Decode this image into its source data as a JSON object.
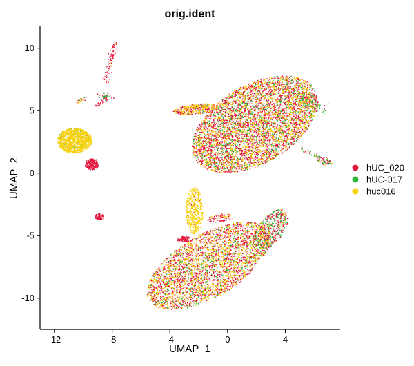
{
  "chart_data": {
    "type": "scatter",
    "title": "orig.ident",
    "xlabel": "UMAP_1",
    "ylabel": "UMAP_2",
    "xlim": [
      -13,
      7.8
    ],
    "ylim": [
      -12.5,
      11.8
    ],
    "x_ticks": [
      -12,
      -8,
      -4,
      0,
      4
    ],
    "y_ticks": [
      -10,
      -5,
      0,
      5,
      10
    ],
    "grid": false,
    "legend_position": "right",
    "series": [
      {
        "name": "hUC_020",
        "color": "#E3173F"
      },
      {
        "name": "hUC-017",
        "color": "#2FB53C"
      },
      {
        "name": "huc016",
        "color": "#F6D10C"
      }
    ],
    "clusters": [
      {
        "shape": "ellipse",
        "cx": 1.9,
        "cy": 3.9,
        "rx": 5.0,
        "ry": 3.0,
        "angle": 38,
        "n": 5200,
        "mix": [
          0.55,
          0.15,
          0.3
        ]
      },
      {
        "shape": "ellipse",
        "cx": -1.3,
        "cy": -7.4,
        "rx": 5.0,
        "ry": 2.4,
        "angle": 36,
        "n": 3400,
        "mix": [
          0.55,
          0.12,
          0.33
        ]
      },
      {
        "shape": "ellipse",
        "cx": 3.0,
        "cy": -4.5,
        "rx": 1.8,
        "ry": 0.9,
        "angle": 60,
        "n": 500,
        "mix": [
          0.5,
          0.4,
          0.1
        ]
      },
      {
        "shape": "ellipse",
        "cx": -2.3,
        "cy": -3.0,
        "rx": 0.6,
        "ry": 1.9,
        "angle": 0,
        "n": 450,
        "mix": [
          0.05,
          0.0,
          0.95
        ]
      },
      {
        "shape": "ellipse",
        "cx": -3.0,
        "cy": -5.3,
        "rx": 0.5,
        "ry": 0.25,
        "angle": 0,
        "n": 90,
        "mix": [
          1.0,
          0.0,
          0.0
        ]
      },
      {
        "shape": "ellipse",
        "cx": -0.5,
        "cy": -3.6,
        "rx": 0.9,
        "ry": 0.3,
        "angle": 10,
        "n": 80,
        "mix": [
          0.8,
          0.0,
          0.2
        ]
      },
      {
        "shape": "ellipse",
        "cx": -2.2,
        "cy": 5.1,
        "rx": 1.6,
        "ry": 0.4,
        "angle": 8,
        "n": 350,
        "mix": [
          0.45,
          0.05,
          0.5
        ]
      },
      {
        "shape": "ellipse",
        "cx": 6.7,
        "cy": 1.0,
        "rx": 0.6,
        "ry": 0.3,
        "angle": -30,
        "n": 70,
        "mix": [
          0.6,
          0.3,
          0.1
        ]
      },
      {
        "shape": "ellipse",
        "cx": -10.6,
        "cy": 2.6,
        "rx": 1.2,
        "ry": 1.0,
        "angle": 0,
        "n": 1200,
        "mix": [
          0.03,
          0.07,
          0.9
        ]
      },
      {
        "shape": "ellipse",
        "cx": -9.4,
        "cy": 0.7,
        "rx": 0.5,
        "ry": 0.45,
        "angle": 0,
        "n": 220,
        "mix": [
          1.0,
          0.0,
          0.0
        ]
      },
      {
        "shape": "ellipse",
        "cx": -8.9,
        "cy": -3.5,
        "rx": 0.35,
        "ry": 0.25,
        "angle": 0,
        "n": 80,
        "mix": [
          1.0,
          0.0,
          0.0
        ]
      },
      {
        "shape": "segment",
        "x1": -8.4,
        "y1": 7.3,
        "x2": -7.8,
        "y2": 10.5,
        "w": 0.1,
        "n": 80,
        "mix": [
          0.95,
          0.0,
          0.05
        ]
      },
      {
        "shape": "segment",
        "x1": -8.9,
        "y1": 6.1,
        "x2": -8.0,
        "y2": 6.2,
        "w": 0.12,
        "n": 40,
        "mix": [
          0.7,
          0.3,
          0.0
        ]
      },
      {
        "shape": "segment",
        "x1": -9.1,
        "y1": 5.4,
        "x2": -8.4,
        "y2": 5.9,
        "w": 0.1,
        "n": 25,
        "mix": [
          1.0,
          0.0,
          0.0
        ]
      },
      {
        "shape": "segment",
        "x1": -10.4,
        "y1": 5.6,
        "x2": -10.0,
        "y2": 6.0,
        "w": 0.08,
        "n": 25,
        "mix": [
          0.3,
          0.3,
          0.4
        ]
      },
      {
        "shape": "segment",
        "x1": 4.8,
        "y1": 6.5,
        "x2": 6.5,
        "y2": 5.0,
        "w": 0.25,
        "n": 150,
        "mix": [
          0.3,
          0.6,
          0.1
        ]
      },
      {
        "shape": "segment",
        "x1": 5.0,
        "y1": 2.0,
        "x2": 6.3,
        "y2": 1.3,
        "w": 0.08,
        "n": 30,
        "mix": [
          0.4,
          0.5,
          0.1
        ]
      }
    ]
  }
}
